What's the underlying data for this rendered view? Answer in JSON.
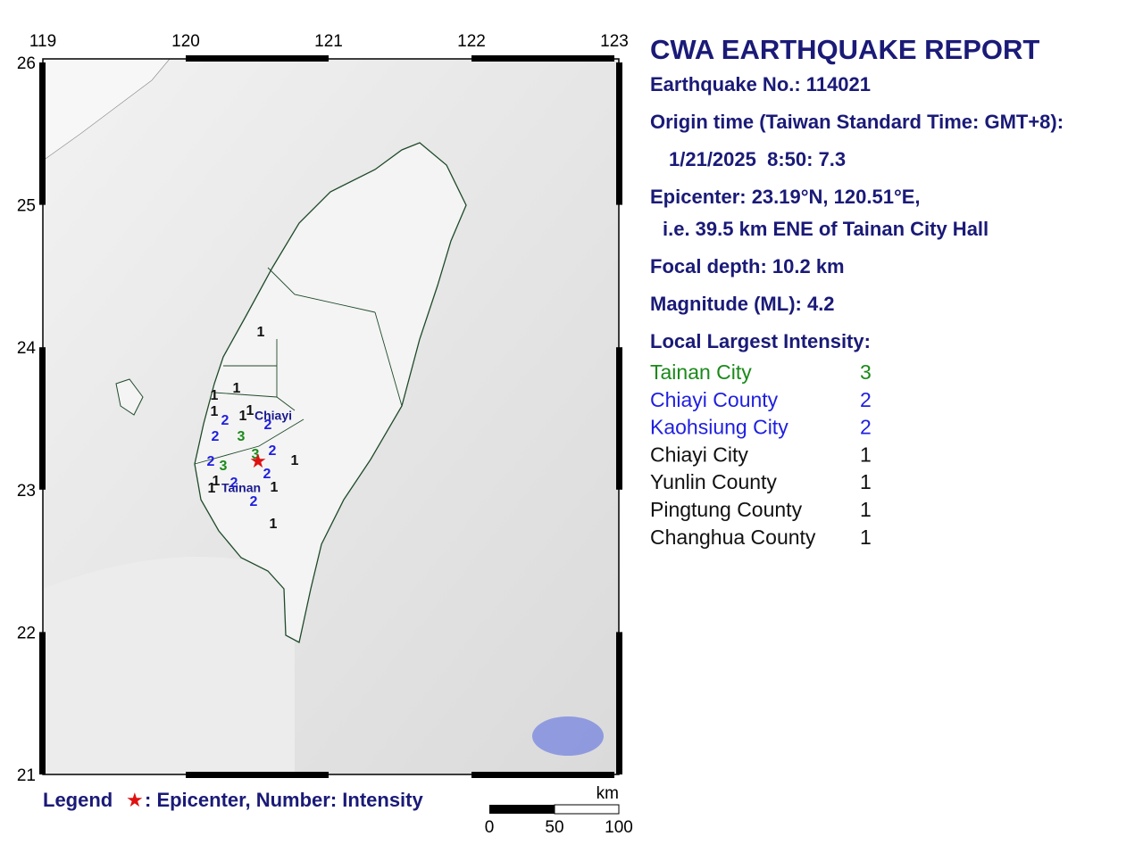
{
  "report": {
    "title": "CWA EARTHQUAKE REPORT",
    "earthquake_no": "Earthquake No.: 114021",
    "origin_label": "Origin time (Taiwan Standard Time: GMT+8):",
    "origin_time": "1/21/2025  8:50: 7.3",
    "epicenter": "Epicenter: 23.19°N, 120.51°E,",
    "epicenter_ref": "i.e. 39.5 km ENE of Tainan City Hall",
    "focal_depth": "Focal depth: 10.2 km",
    "magnitude": "Magnitude (ML): 4.2",
    "intensity_heading": "Local Largest Intensity:",
    "intensities": [
      {
        "area": "Tainan City",
        "level": "3",
        "color": "#1a8a1a"
      },
      {
        "area": "Chiayi County",
        "level": "2",
        "color": "#1f1fe0"
      },
      {
        "area": "Kaohsiung City",
        "level": "2",
        "color": "#1f1fe0"
      },
      {
        "area": "Chiayi City",
        "level": "1",
        "color": "#111111"
      },
      {
        "area": "Yunlin County",
        "level": "1",
        "color": "#111111"
      },
      {
        "area": "Pingtung County",
        "level": "1",
        "color": "#111111"
      },
      {
        "area": "Changhua County",
        "level": "1",
        "color": "#111111"
      }
    ]
  },
  "map": {
    "lon_ticks": [
      "119",
      "120",
      "121",
      "122",
      "123"
    ],
    "lat_ticks": [
      "26",
      "25",
      "24",
      "23",
      "22",
      "21"
    ],
    "places": [
      "Chiayi",
      "Tainan"
    ],
    "markers": [
      "1",
      "1",
      "1",
      "1",
      "2",
      "1",
      "1",
      "2",
      "2",
      "3",
      "3",
      "2",
      "2",
      "3",
      "1",
      "2",
      "1",
      "2",
      "1",
      "1",
      "2",
      "1"
    ]
  },
  "legend": {
    "label": "Legend",
    "symbol": "★",
    "text": ": Epicenter, Number: Intensity"
  },
  "scale": {
    "unit": "km",
    "labels": [
      "0",
      "50",
      "100"
    ]
  }
}
